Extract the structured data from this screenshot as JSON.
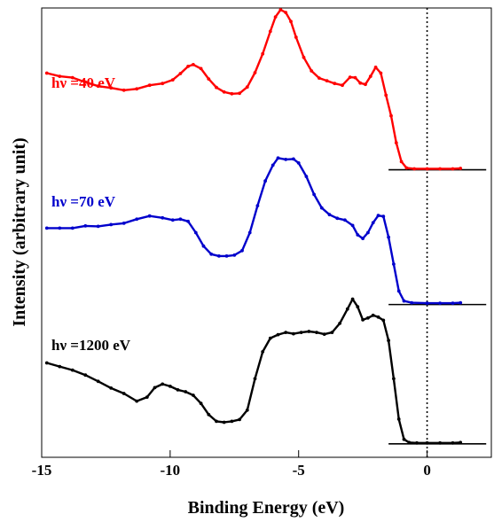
{
  "chart_data": {
    "type": "line",
    "title": "",
    "xlabel": "Binding Energy (eV)",
    "ylabel": "Intensity (arbitrary unit)",
    "xlim": [
      -15,
      2.5
    ],
    "x_ticks": [
      -15,
      -10,
      -5,
      0
    ],
    "x_tick_labels": [
      "-15",
      "-10",
      "-5",
      "0"
    ],
    "y_ticks_shown": false,
    "ylim": [
      0,
      100
    ],
    "grid": false,
    "legend": "none",
    "reference_line": {
      "x": 0,
      "style": "dotted"
    },
    "series": [
      {
        "name": "hν =40 eV",
        "color": "#ff0000",
        "baseline_y": 64,
        "points": [
          [
            -14.8,
            85.5
          ],
          [
            -14.3,
            84.8
          ],
          [
            -13.8,
            84.5
          ],
          [
            -13.3,
            83.5
          ],
          [
            -12.8,
            82.6
          ],
          [
            -12.3,
            82.2
          ],
          [
            -11.8,
            81.7
          ],
          [
            -11.3,
            82.0
          ],
          [
            -10.8,
            82.8
          ],
          [
            -10.3,
            83.2
          ],
          [
            -9.9,
            84.0
          ],
          [
            -9.6,
            85.4
          ],
          [
            -9.3,
            87.0
          ],
          [
            -9.1,
            87.4
          ],
          [
            -8.8,
            86.5
          ],
          [
            -8.5,
            84.2
          ],
          [
            -8.2,
            82.3
          ],
          [
            -7.9,
            81.3
          ],
          [
            -7.6,
            80.9
          ],
          [
            -7.3,
            81.0
          ],
          [
            -7.0,
            82.4
          ],
          [
            -6.7,
            85.6
          ],
          [
            -6.4,
            89.8
          ],
          [
            -6.1,
            94.8
          ],
          [
            -5.9,
            98.0
          ],
          [
            -5.7,
            99.6
          ],
          [
            -5.5,
            99.0
          ],
          [
            -5.3,
            97.0
          ],
          [
            -5.1,
            93.5
          ],
          [
            -4.8,
            89.0
          ],
          [
            -4.5,
            86.0
          ],
          [
            -4.2,
            84.4
          ],
          [
            -3.9,
            83.8
          ],
          [
            -3.6,
            83.2
          ],
          [
            -3.3,
            82.8
          ],
          [
            -3.0,
            84.6
          ],
          [
            -2.8,
            84.5
          ],
          [
            -2.6,
            83.3
          ],
          [
            -2.4,
            83.0
          ],
          [
            -2.2,
            84.8
          ],
          [
            -2.0,
            86.8
          ],
          [
            -1.8,
            85.5
          ],
          [
            -1.6,
            80.6
          ],
          [
            -1.4,
            76.0
          ],
          [
            -1.2,
            70.0
          ],
          [
            -1.0,
            65.8
          ],
          [
            -0.8,
            64.4
          ],
          [
            -0.5,
            64.2
          ],
          [
            0.0,
            64.2
          ],
          [
            0.5,
            64.2
          ],
          [
            1.0,
            64.2
          ],
          [
            1.3,
            64.3
          ]
        ]
      },
      {
        "name": "hν =70 eV",
        "color": "#0000cc",
        "baseline_y": 34,
        "points": [
          [
            -14.8,
            51.0
          ],
          [
            -14.3,
            51.0
          ],
          [
            -13.8,
            51.0
          ],
          [
            -13.3,
            51.5
          ],
          [
            -12.8,
            51.4
          ],
          [
            -12.3,
            51.8
          ],
          [
            -11.8,
            52.1
          ],
          [
            -11.3,
            53.0
          ],
          [
            -10.8,
            53.7
          ],
          [
            -10.3,
            53.3
          ],
          [
            -9.9,
            52.8
          ],
          [
            -9.6,
            53.0
          ],
          [
            -9.3,
            52.5
          ],
          [
            -9.0,
            50.0
          ],
          [
            -8.7,
            47.0
          ],
          [
            -8.4,
            45.2
          ],
          [
            -8.1,
            44.8
          ],
          [
            -7.8,
            44.8
          ],
          [
            -7.5,
            45.0
          ],
          [
            -7.2,
            46.0
          ],
          [
            -6.9,
            50.0
          ],
          [
            -6.6,
            56.0
          ],
          [
            -6.3,
            61.5
          ],
          [
            -6.0,
            65.0
          ],
          [
            -5.8,
            66.6
          ],
          [
            -5.5,
            66.3
          ],
          [
            -5.2,
            66.4
          ],
          [
            -5.0,
            65.5
          ],
          [
            -4.7,
            62.5
          ],
          [
            -4.4,
            58.5
          ],
          [
            -4.1,
            55.5
          ],
          [
            -3.8,
            54.0
          ],
          [
            -3.5,
            53.2
          ],
          [
            -3.2,
            52.8
          ],
          [
            -2.9,
            51.6
          ],
          [
            -2.7,
            49.5
          ],
          [
            -2.5,
            48.7
          ],
          [
            -2.3,
            50.0
          ],
          [
            -2.1,
            52.2
          ],
          [
            -1.9,
            53.8
          ],
          [
            -1.7,
            53.6
          ],
          [
            -1.5,
            49.0
          ],
          [
            -1.3,
            43.0
          ],
          [
            -1.1,
            37.0
          ],
          [
            -0.9,
            34.8
          ],
          [
            -0.6,
            34.4
          ],
          [
            0.0,
            34.3
          ],
          [
            0.5,
            34.3
          ],
          [
            1.0,
            34.3
          ],
          [
            1.3,
            34.4
          ]
        ]
      },
      {
        "name": "hν =1200 eV",
        "color": "#000000",
        "baseline_y": 3,
        "points": [
          [
            -14.8,
            21.0
          ],
          [
            -14.3,
            20.2
          ],
          [
            -13.8,
            19.4
          ],
          [
            -13.3,
            18.3
          ],
          [
            -12.8,
            16.9
          ],
          [
            -12.3,
            15.4
          ],
          [
            -11.8,
            14.2
          ],
          [
            -11.3,
            12.5
          ],
          [
            -10.9,
            13.4
          ],
          [
            -10.6,
            15.5
          ],
          [
            -10.3,
            16.3
          ],
          [
            -10.0,
            15.8
          ],
          [
            -9.7,
            15.0
          ],
          [
            -9.4,
            14.6
          ],
          [
            -9.1,
            13.8
          ],
          [
            -8.8,
            12.0
          ],
          [
            -8.5,
            9.5
          ],
          [
            -8.2,
            8.0
          ],
          [
            -7.9,
            7.8
          ],
          [
            -7.6,
            8.0
          ],
          [
            -7.3,
            8.4
          ],
          [
            -7.0,
            10.5
          ],
          [
            -6.7,
            17.5
          ],
          [
            -6.4,
            23.5
          ],
          [
            -6.1,
            26.5
          ],
          [
            -5.8,
            27.3
          ],
          [
            -5.5,
            27.8
          ],
          [
            -5.2,
            27.5
          ],
          [
            -4.9,
            27.8
          ],
          [
            -4.6,
            28.0
          ],
          [
            -4.3,
            27.8
          ],
          [
            -4.0,
            27.4
          ],
          [
            -3.7,
            27.8
          ],
          [
            -3.4,
            29.8
          ],
          [
            -3.1,
            33.0
          ],
          [
            -2.9,
            35.2
          ],
          [
            -2.7,
            33.5
          ],
          [
            -2.5,
            30.6
          ],
          [
            -2.3,
            31.0
          ],
          [
            -2.1,
            31.6
          ],
          [
            -1.9,
            31.2
          ],
          [
            -1.7,
            30.5
          ],
          [
            -1.5,
            26.0
          ],
          [
            -1.3,
            17.5
          ],
          [
            -1.1,
            8.5
          ],
          [
            -0.9,
            4.0
          ],
          [
            -0.7,
            3.3
          ],
          [
            -0.4,
            3.2
          ],
          [
            0.0,
            3.2
          ],
          [
            0.5,
            3.2
          ],
          [
            1.0,
            3.2
          ],
          [
            1.3,
            3.3
          ]
        ]
      }
    ]
  }
}
